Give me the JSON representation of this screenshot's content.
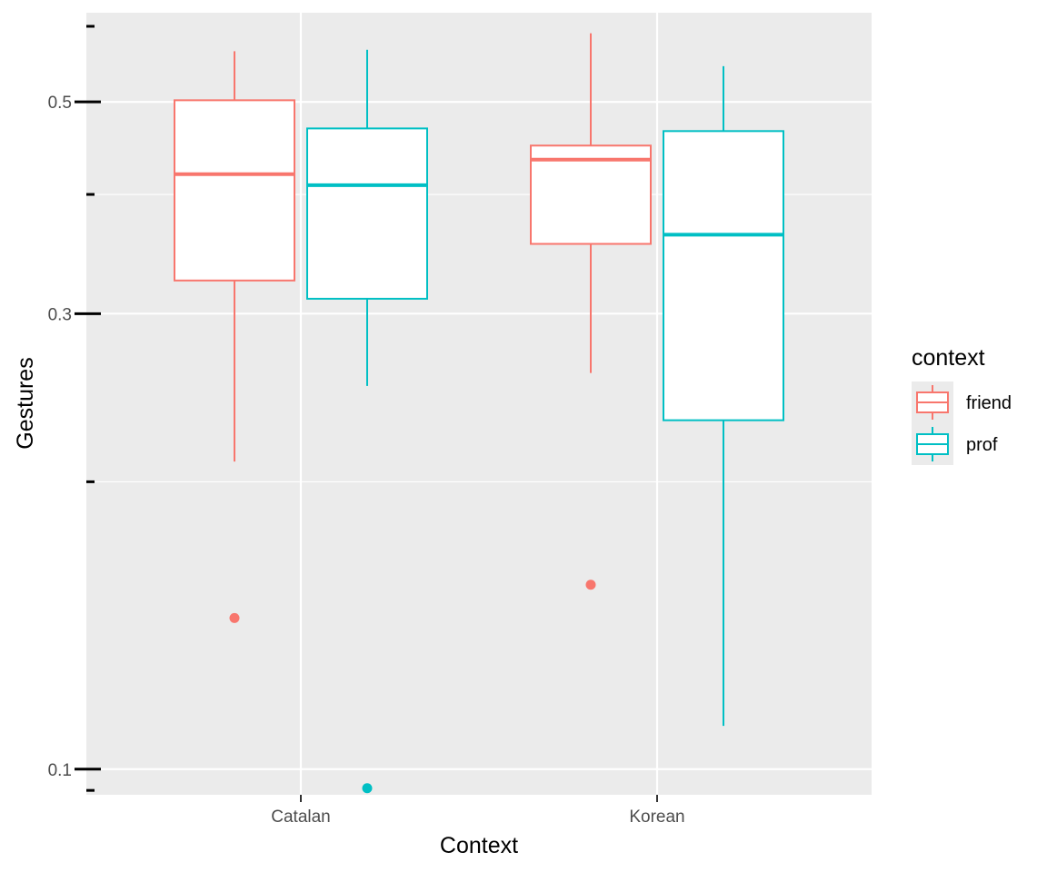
{
  "chart_data": {
    "type": "box",
    "title": "",
    "xlabel": "Context",
    "ylabel": "Gestures",
    "y_scale": "log10",
    "ylim": [
      0.094,
      0.62
    ],
    "y_major_ticks": [
      0.1,
      0.3,
      0.5
    ],
    "y_minor_ticks": [
      0.2,
      0.4
    ],
    "y_extra_ticks": [
      0.095,
      0.6
    ],
    "categories": [
      "Catalan",
      "Korean"
    ],
    "grid": true,
    "legend": {
      "title": "context",
      "placement": "right"
    },
    "series": [
      {
        "name": "friend",
        "color": "#F8766D",
        "boxes": [
          {
            "category": "Catalan",
            "whisker_low": 0.21,
            "q1": 0.325,
            "median": 0.42,
            "q3": 0.502,
            "whisker_high": 0.565,
            "outliers": [
              0.144
            ]
          },
          {
            "category": "Korean",
            "whisker_low": 0.26,
            "q1": 0.355,
            "median": 0.435,
            "q3": 0.45,
            "whisker_high": 0.59,
            "outliers": [
              0.156
            ]
          }
        ]
      },
      {
        "name": "prof",
        "color": "#00BFC4",
        "boxes": [
          {
            "category": "Catalan",
            "whisker_low": 0.252,
            "q1": 0.311,
            "median": 0.409,
            "q3": 0.469,
            "whisker_high": 0.567,
            "outliers": [
              0.0955
            ]
          },
          {
            "category": "Korean",
            "whisker_low": 0.111,
            "q1": 0.232,
            "median": 0.363,
            "q3": 0.466,
            "whisker_high": 0.545,
            "outliers": []
          }
        ]
      }
    ]
  }
}
